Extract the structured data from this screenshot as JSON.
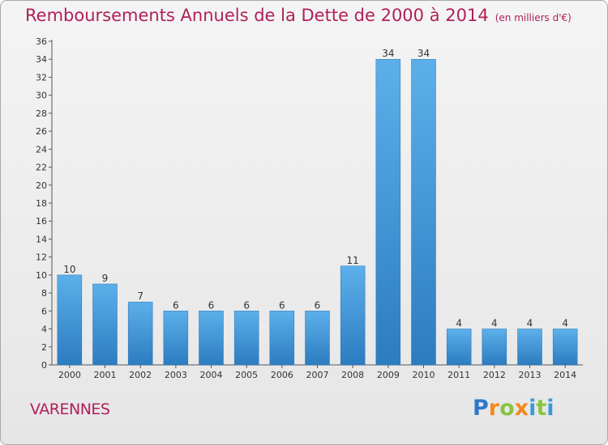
{
  "chart_data": {
    "type": "bar",
    "title": "Remboursements Annuels de la Dette de 2000 à 2014",
    "unit": "(en milliers d'€)",
    "categories": [
      "2000",
      "2001",
      "2002",
      "2003",
      "2004",
      "2005",
      "2006",
      "2007",
      "2008",
      "2009",
      "2010",
      "2011",
      "2012",
      "2013",
      "2014"
    ],
    "values": [
      10,
      9,
      7,
      6,
      6,
      6,
      6,
      6,
      11,
      34,
      34,
      4,
      4,
      4,
      4
    ],
    "ylim": [
      0,
      36
    ],
    "yticks": [
      0,
      2,
      4,
      6,
      8,
      10,
      12,
      14,
      16,
      18,
      20,
      22,
      24,
      26,
      28,
      30,
      32,
      34,
      36
    ],
    "grid": false,
    "bar_color": "#4a9fe0",
    "bar_color_dark": "#2f7fc2"
  },
  "city": "VARENNES",
  "logo": {
    "text": "Proxiti"
  },
  "colors": {
    "title": "#b0205a",
    "frame": "#a8a8a8"
  }
}
